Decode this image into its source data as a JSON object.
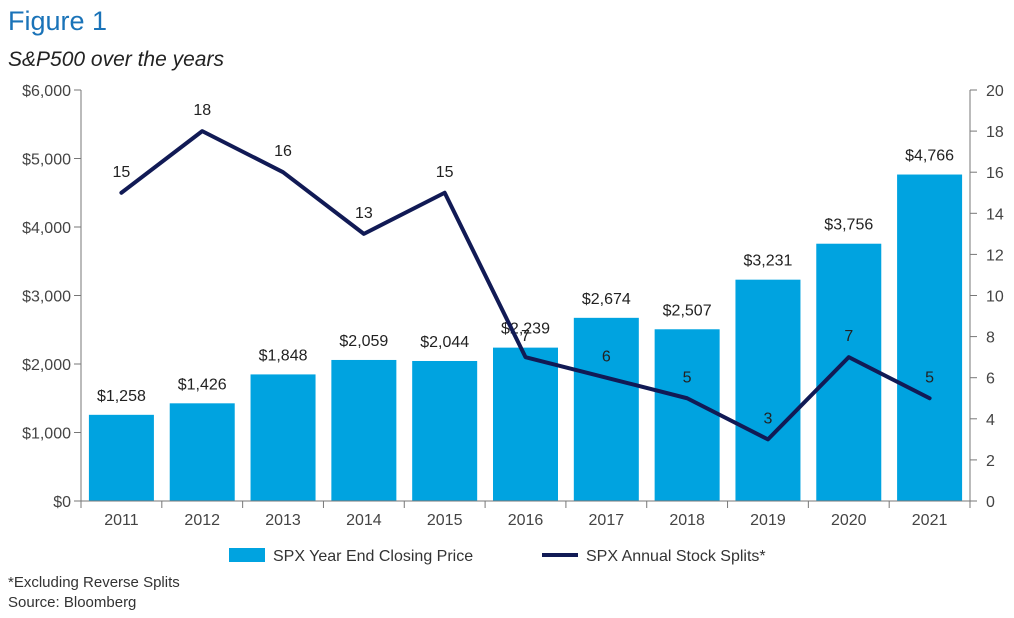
{
  "header": {
    "figure_label": "Figure 1",
    "subtitle": "S&P500 over the years"
  },
  "footnotes": {
    "note": "*Excluding Reverse Splits",
    "source": "Source: Bloomberg"
  },
  "colors": {
    "bars": "#00a3e0",
    "line": "#111a55",
    "axis": "#777777",
    "figure_label": "#1a73b8"
  },
  "chart_data": {
    "type": "bar",
    "categories": [
      "2011",
      "2012",
      "2013",
      "2014",
      "2015",
      "2016",
      "2017",
      "2018",
      "2019",
      "2020",
      "2021"
    ],
    "series": [
      {
        "name": "SPX Year End Closing Price",
        "type": "bar",
        "axis": "left",
        "values": [
          1258,
          1426,
          1848,
          2059,
          2044,
          2239,
          2674,
          2507,
          3231,
          3756,
          4766
        ],
        "labels": [
          "$1,258",
          "$1,426",
          "$1,848",
          "$2,059",
          "$2,044",
          "$2,239",
          "$2,674",
          "$2,507",
          "$3,231",
          "$3,756",
          "$4,766"
        ]
      },
      {
        "name": "SPX Annual Stock Splits*",
        "type": "line",
        "axis": "right",
        "values": [
          15,
          18,
          16,
          13,
          15,
          7,
          6,
          5,
          3,
          7,
          5
        ],
        "labels": [
          "15",
          "18",
          "16",
          "13",
          "15",
          "7",
          "6",
          "5",
          "3",
          "7",
          "5"
        ]
      }
    ],
    "y_left": {
      "lim": [
        0,
        6000
      ],
      "ticks": [
        0,
        1000,
        2000,
        3000,
        4000,
        5000,
        6000
      ],
      "tick_labels": [
        "$0",
        "$1,000",
        "$2,000",
        "$3,000",
        "$4,000",
        "$5,000",
        "$6,000"
      ]
    },
    "y_right": {
      "lim": [
        0,
        20
      ],
      "ticks": [
        0,
        2,
        4,
        6,
        8,
        10,
        12,
        14,
        16,
        18,
        20
      ],
      "tick_labels": [
        "0",
        "2",
        "4",
        "6",
        "8",
        "10",
        "12",
        "14",
        "16",
        "18",
        "20"
      ]
    },
    "grid": false,
    "legend": "bottom-center"
  }
}
